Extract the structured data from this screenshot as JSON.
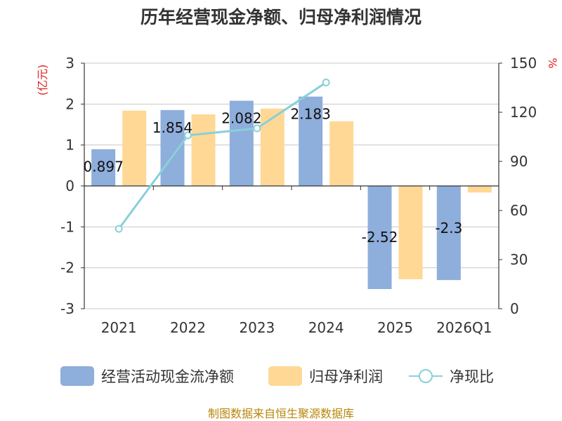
{
  "chart_data": {
    "type": "bar",
    "title": "历年经营现金净额、归母净利润情况",
    "categories": [
      "2021",
      "2022",
      "2023",
      "2024",
      "2025",
      "2026Q1"
    ],
    "left_unit": "(亿元)",
    "right_unit": "%",
    "ylim_left": [
      -3,
      3
    ],
    "yticks_left": [
      "-3",
      "-2",
      "-1",
      "0",
      "1",
      "2",
      "3"
    ],
    "ylim_right": [
      0,
      150
    ],
    "yticks_right": [
      "0",
      "30",
      "60",
      "90",
      "120",
      "150"
    ],
    "grid": true,
    "legend_position": "bottom",
    "series": [
      {
        "name": "经营活动现金流净额",
        "type": "bar",
        "axis": "left",
        "color": "#8eaedb",
        "values": [
          0.897,
          1.854,
          2.082,
          2.183,
          -2.52,
          -2.3
        ],
        "labels": [
          "0.897",
          "1.854",
          "2.082",
          "2.183",
          "-2.52",
          "-2.3"
        ]
      },
      {
        "name": "归母净利润",
        "type": "bar",
        "axis": "left",
        "color": "#ffd896",
        "values": [
          1.84,
          1.75,
          1.89,
          1.58,
          -2.28,
          -0.16
        ]
      },
      {
        "name": "净现比",
        "type": "line",
        "axis": "right",
        "color": "#88d0d8",
        "values": [
          48.8,
          105.9,
          110.2,
          138.2,
          null,
          null
        ]
      }
    ],
    "source": "制图数据来自恒生聚源数据库"
  }
}
